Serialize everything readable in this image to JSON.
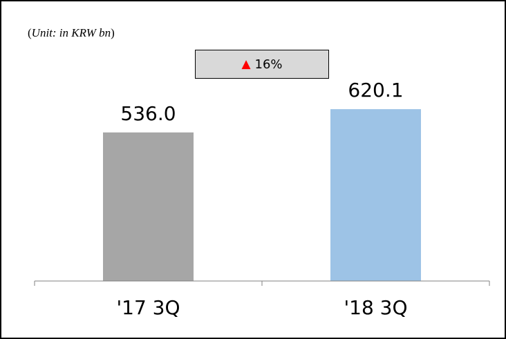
{
  "note": {
    "open": "(",
    "text": "Unit: in KRW bn",
    "close": ")"
  },
  "growth": {
    "arrow": "▲",
    "value": "16%",
    "arrow_color": "#ff0000",
    "box_color": "#d9d9d9"
  },
  "chart_data": {
    "type": "bar",
    "title": "",
    "unit": "KRW bn",
    "categories": [
      "'17 3Q",
      "'18 3Q"
    ],
    "values": [
      536.0,
      620.1
    ],
    "value_labels": [
      "536.0",
      "620.1"
    ],
    "colors": [
      "#a6a6a6",
      "#9dc3e6"
    ],
    "ylim": [
      0,
      690
    ],
    "grid": false,
    "legend": "none"
  }
}
